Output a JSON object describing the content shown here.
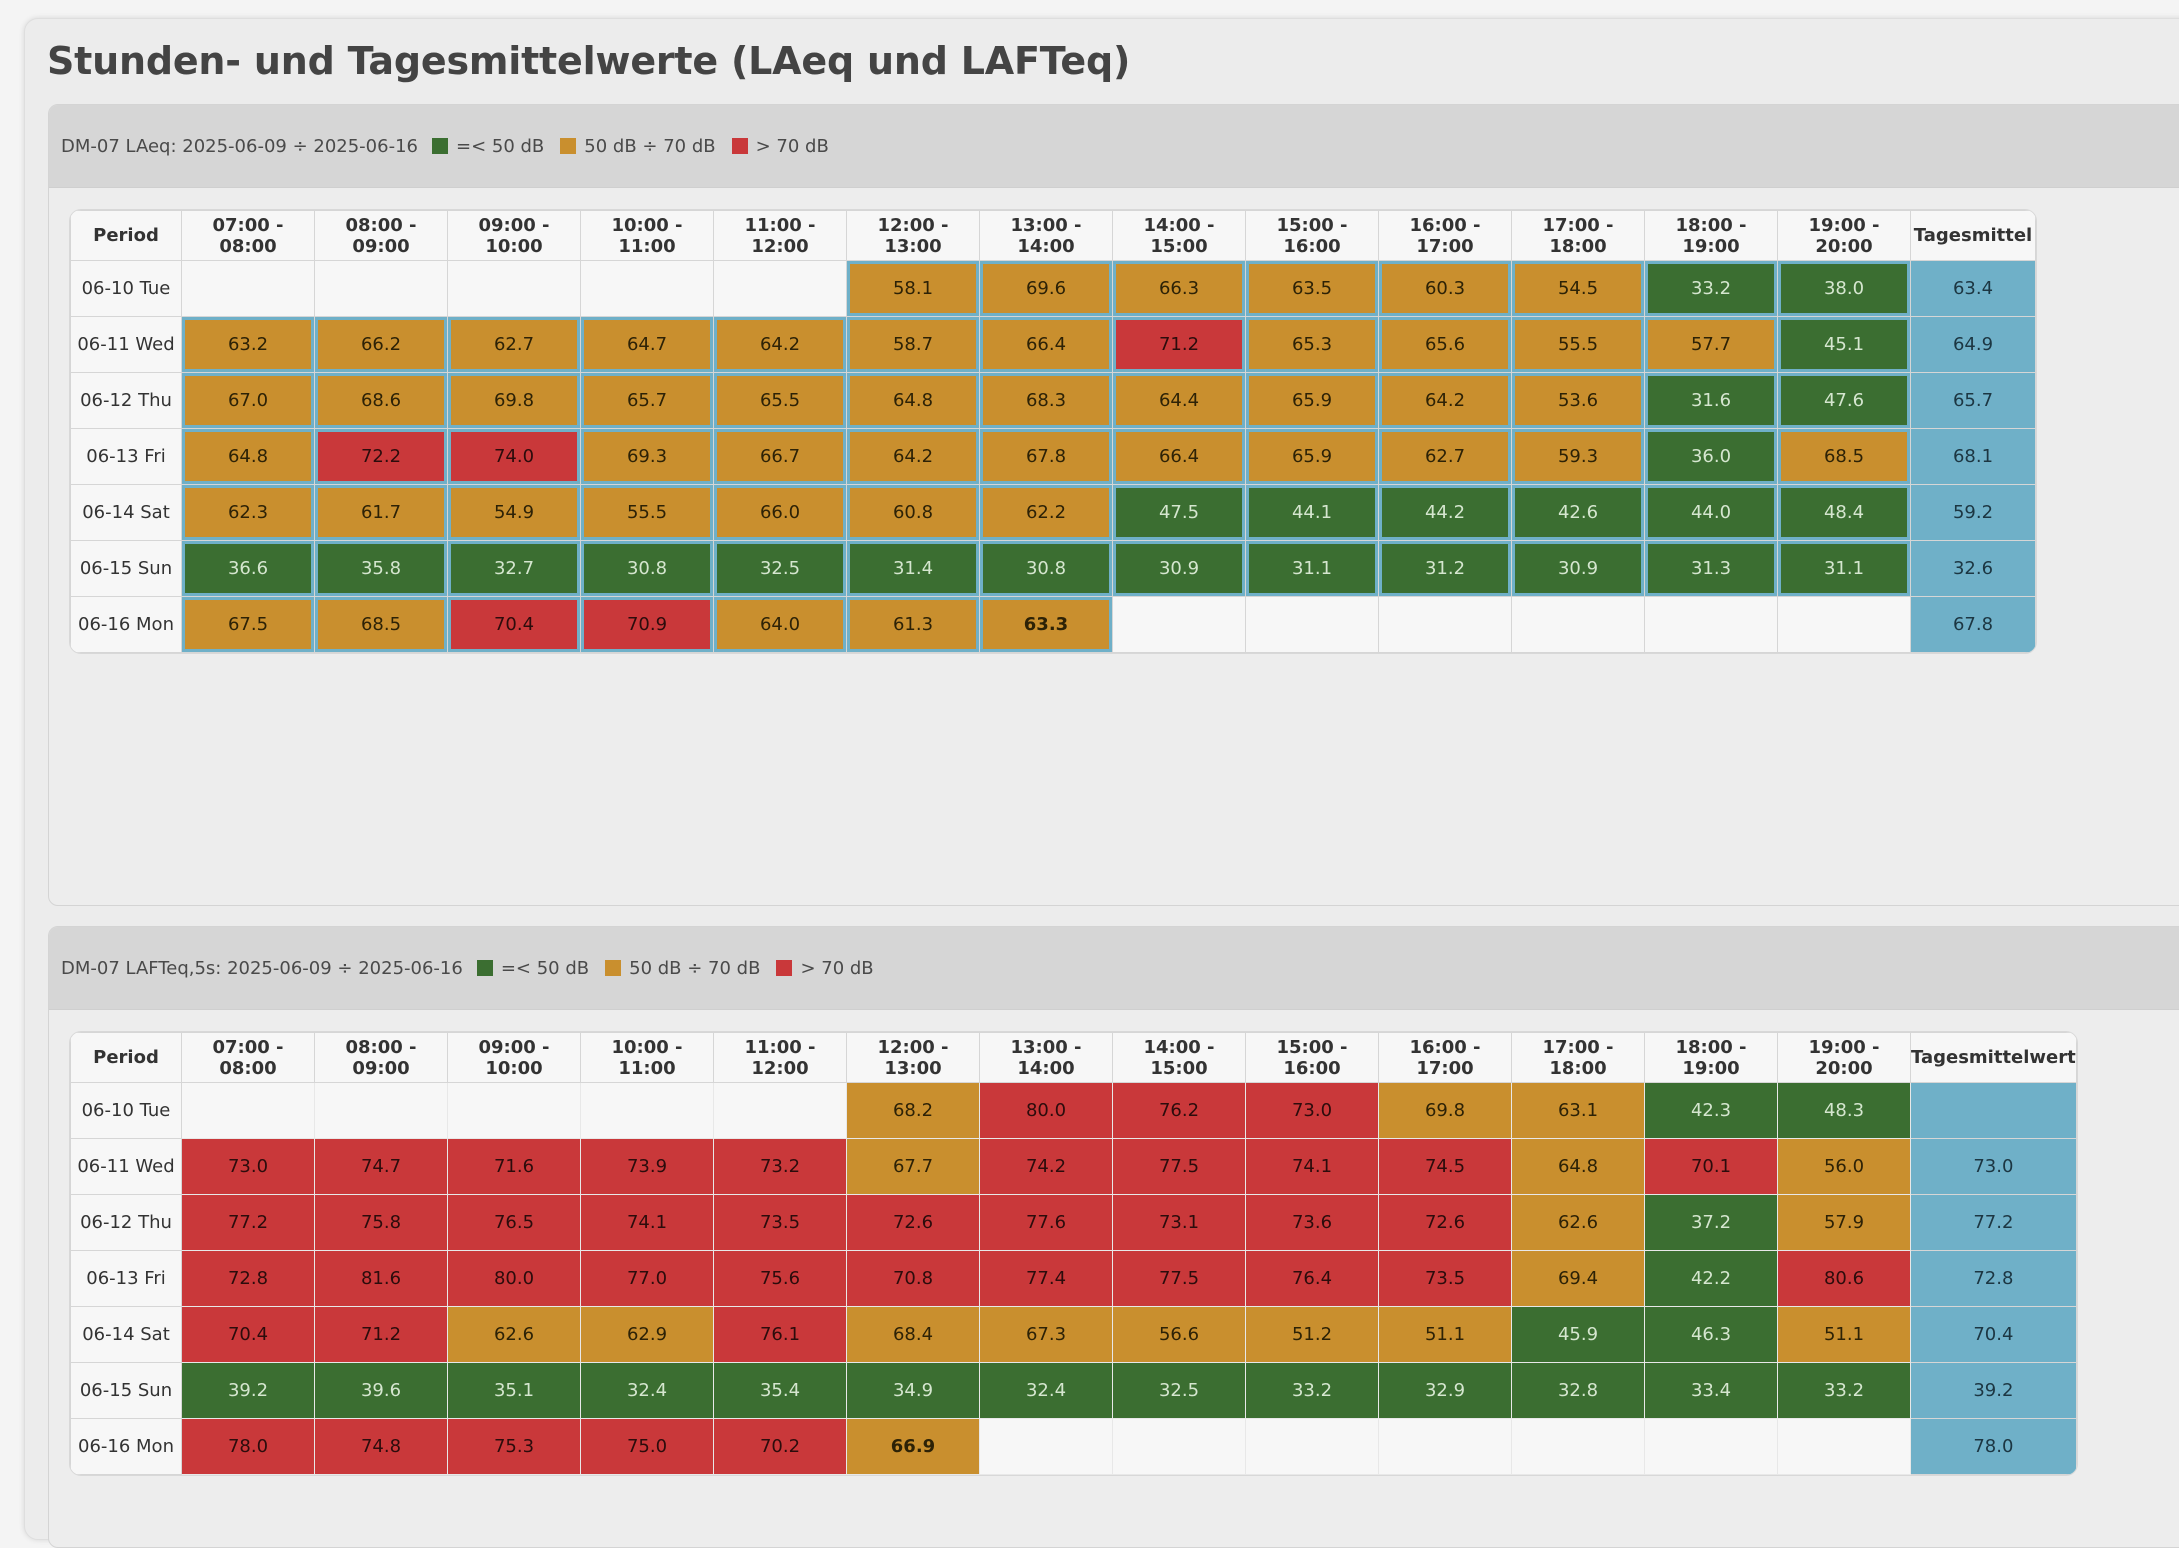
{
  "page_title": "Stunden- und Tagesmittelwerte (LAeq und LAFTeq)",
  "legend": {
    "green_label": "=< 50 dB",
    "orange_label": "50 dB ÷ 70 dB",
    "red_label": "> 70 dB",
    "colors": {
      "green": "#3b6e31",
      "orange": "#c98f2e",
      "red": "#c9383a",
      "daily": "#6fb0c8"
    }
  },
  "hours": [
    "07:00 - 08:00",
    "08:00 - 09:00",
    "09:00 - 10:00",
    "10:00 - 11:00",
    "11:00 - 12:00",
    "12:00 - 13:00",
    "13:00 - 14:00",
    "14:00 - 15:00",
    "15:00 - 16:00",
    "16:00 - 17:00",
    "17:00 - 18:00",
    "18:00 - 19:00",
    "19:00 - 20:00"
  ],
  "tables": [
    {
      "title": "DM-07 LAeq: 2025-06-09 ÷ 2025-06-16",
      "period_header": "Period",
      "daily_header": "Tagesmittel",
      "rows": [
        {
          "period": "06-10 Tue",
          "values": [
            "",
            "",
            "",
            "",
            "",
            "58.1",
            "69.6",
            "66.3",
            "63.5",
            "60.3",
            "54.5",
            "33.2",
            "38.0"
          ],
          "daily": "63.4"
        },
        {
          "period": "06-11 Wed",
          "values": [
            "63.2",
            "66.2",
            "62.7",
            "64.7",
            "64.2",
            "58.7",
            "66.4",
            "71.2",
            "65.3",
            "65.6",
            "55.5",
            "57.7",
            "45.1"
          ],
          "daily": "64.9"
        },
        {
          "period": "06-12 Thu",
          "values": [
            "67.0",
            "68.6",
            "69.8",
            "65.7",
            "65.5",
            "64.8",
            "68.3",
            "64.4",
            "65.9",
            "64.2",
            "53.6",
            "31.6",
            "47.6"
          ],
          "daily": "65.7"
        },
        {
          "period": "06-13 Fri",
          "values": [
            "64.8",
            "72.2",
            "74.0",
            "69.3",
            "66.7",
            "64.2",
            "67.8",
            "66.4",
            "65.9",
            "62.7",
            "59.3",
            "36.0",
            "68.5"
          ],
          "daily": "68.1"
        },
        {
          "period": "06-14 Sat",
          "values": [
            "62.3",
            "61.7",
            "54.9",
            "55.5",
            "66.0",
            "60.8",
            "62.2",
            "47.5",
            "44.1",
            "44.2",
            "42.6",
            "44.0",
            "48.4"
          ],
          "daily": "59.2"
        },
        {
          "period": "06-15 Sun",
          "values": [
            "36.6",
            "35.8",
            "32.7",
            "30.8",
            "32.5",
            "31.4",
            "30.8",
            "30.9",
            "31.1",
            "31.2",
            "30.9",
            "31.3",
            "31.1"
          ],
          "daily": "32.6"
        },
        {
          "period": "06-16 Mon",
          "values": [
            "67.5",
            "68.5",
            "70.4",
            "70.9",
            "64.0",
            "61.3",
            "63.3",
            "",
            "",
            "",
            "",
            "",
            ""
          ],
          "daily": "67.8"
        }
      ]
    },
    {
      "title": "DM-07 LAFTeq,5s: 2025-06-09 ÷ 2025-06-16",
      "period_header": "Period",
      "daily_header": "Tagesmittelwert",
      "rows": [
        {
          "period": "06-10 Tue",
          "values": [
            "",
            "",
            "",
            "",
            "",
            "68.2",
            "80.0",
            "76.2",
            "73.0",
            "69.8",
            "63.1",
            "42.3",
            "48.3"
          ],
          "daily": ""
        },
        {
          "period": "06-11 Wed",
          "values": [
            "73.0",
            "74.7",
            "71.6",
            "73.9",
            "73.2",
            "67.7",
            "74.2",
            "77.5",
            "74.1",
            "74.5",
            "64.8",
            "70.1",
            "56.0"
          ],
          "daily": "73.0"
        },
        {
          "period": "06-12 Thu",
          "values": [
            "77.2",
            "75.8",
            "76.5",
            "74.1",
            "73.5",
            "72.6",
            "77.6",
            "73.1",
            "73.6",
            "72.6",
            "62.6",
            "37.2",
            "57.9"
          ],
          "daily": "77.2"
        },
        {
          "period": "06-13 Fri",
          "values": [
            "72.8",
            "81.6",
            "80.0",
            "77.0",
            "75.6",
            "70.8",
            "77.4",
            "77.5",
            "76.4",
            "73.5",
            "69.4",
            "42.2",
            "80.6"
          ],
          "daily": "72.8"
        },
        {
          "period": "06-14 Sat",
          "values": [
            "70.4",
            "71.2",
            "62.6",
            "62.9",
            "76.1",
            "68.4",
            "67.3",
            "56.6",
            "51.2",
            "51.1",
            "45.9",
            "46.3",
            "51.1"
          ],
          "daily": "70.4"
        },
        {
          "period": "06-15 Sun",
          "values": [
            "39.2",
            "39.6",
            "35.1",
            "32.4",
            "35.4",
            "34.9",
            "32.4",
            "32.5",
            "33.2",
            "32.9",
            "32.8",
            "33.4",
            "33.2"
          ],
          "daily": "39.2"
        },
        {
          "period": "06-16 Mon",
          "values": [
            "78.0",
            "74.8",
            "75.3",
            "75.0",
            "70.2",
            "66.9",
            "",
            "",
            "",
            "",
            "",
            "",
            ""
          ],
          "daily": "78.0"
        }
      ]
    }
  ]
}
